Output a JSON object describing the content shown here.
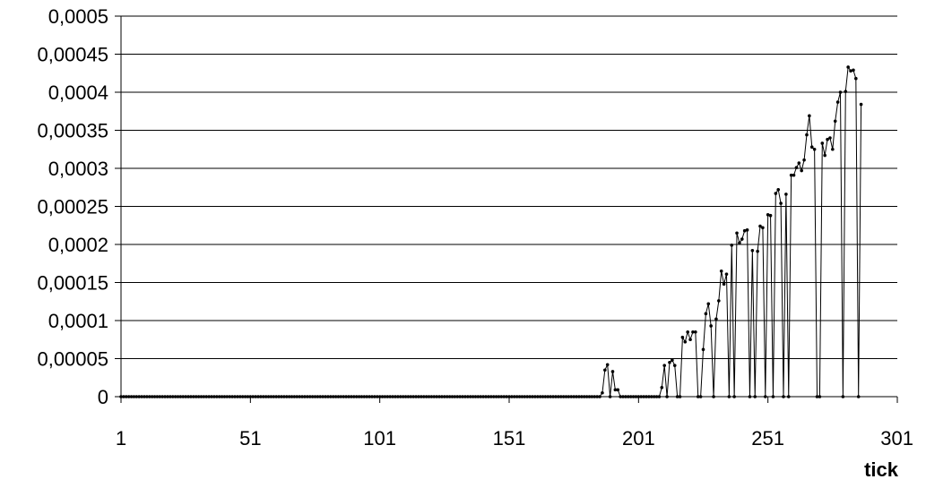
{
  "chart_data": {
    "type": "line",
    "title": "",
    "xlabel": "tick",
    "ylabel": "",
    "xlim": [
      1,
      301
    ],
    "ylim": [
      0,
      0.0005
    ],
    "grid": true,
    "legend": "none",
    "x_ticks": [
      1,
      51,
      101,
      151,
      201,
      251,
      301
    ],
    "x_tick_labels": [
      "1",
      "51",
      "101",
      "151",
      "201",
      "251",
      "301"
    ],
    "y_ticks": [
      0,
      5e-05,
      0.0001,
      0.00015,
      0.0002,
      0.00025,
      0.0003,
      0.00035,
      0.0004,
      0.00045,
      0.0005
    ],
    "y_tick_labels": [
      "0",
      "0,00005",
      "0,0001",
      "0,00015",
      "0,0002",
      "0,00025",
      "0,0003",
      "0,00035",
      "0,0004",
      "0,00045",
      "0,0005"
    ],
    "colors": {
      "line": "#000000",
      "marker": "#000000",
      "grid": "#000000",
      "background": "#ffffff"
    },
    "series": [
      {
        "x_start": 1,
        "values": [
          0,
          0,
          0,
          0,
          0,
          0,
          0,
          0,
          0,
          0,
          0,
          0,
          0,
          0,
          0,
          0,
          0,
          0,
          0,
          0,
          0,
          0,
          0,
          0,
          0,
          0,
          0,
          0,
          0,
          0,
          0,
          0,
          0,
          0,
          0,
          0,
          0,
          0,
          0,
          0,
          0,
          0,
          0,
          0,
          0,
          0,
          0,
          0,
          0,
          0,
          0,
          0,
          0,
          0,
          0,
          0,
          0,
          0,
          0,
          0,
          0,
          0,
          0,
          0,
          0,
          0,
          0,
          0,
          0,
          0,
          0,
          0,
          0,
          0,
          0,
          0,
          0,
          0,
          0,
          0,
          0,
          0,
          0,
          0,
          0,
          0,
          0,
          0,
          0,
          0,
          0,
          0,
          0,
          0,
          0,
          0,
          0,
          0,
          0,
          0,
          0,
          0,
          0,
          0,
          0,
          0,
          0,
          0,
          0,
          0,
          0,
          0,
          0,
          0,
          0,
          0,
          0,
          0,
          0,
          0,
          0,
          0,
          0,
          0,
          0,
          0,
          0,
          0,
          0,
          0,
          0,
          0,
          0,
          0,
          0,
          0,
          0,
          0,
          0,
          0,
          0,
          0,
          0,
          0,
          0,
          0,
          0,
          0,
          0,
          0,
          0,
          0,
          0,
          0,
          0,
          0,
          0,
          0,
          0,
          0,
          0,
          0,
          0,
          0,
          0,
          0,
          0,
          0,
          0,
          0,
          0,
          0,
          0,
          0,
          0,
          0,
          0,
          0,
          0,
          0,
          0,
          0,
          0,
          0,
          0,
          0,
          5e-06,
          3.5e-05,
          4.2e-05,
          0,
          3.3e-05,
          9e-06,
          9e-06,
          0,
          0,
          0,
          0,
          0,
          0,
          0,
          0,
          0,
          0,
          0,
          0,
          0,
          0,
          0,
          0,
          1.2e-05,
          4.1e-05,
          0,
          4.5e-05,
          4.8e-05,
          4.1e-05,
          0,
          0,
          7.8e-05,
          7.2e-05,
          8.5e-05,
          7.5e-05,
          8.5e-05,
          8.5e-05,
          0,
          0,
          6.2e-05,
          0.000109,
          0.000122,
          9.3e-05,
          0,
          0.000102,
          0.000126,
          0.000165,
          0.000148,
          0.000161,
          0,
          0.000199,
          0,
          0.000215,
          0.000202,
          0.000207,
          0.000218,
          0.000219,
          0,
          0.000192,
          0,
          0.000191,
          0.000224,
          0.000222,
          0,
          0.000239,
          0.000238,
          0,
          0.000267,
          0.000272,
          0.000254,
          0,
          0.000266,
          0,
          0.000291,
          0.000291,
          0.000301,
          0.000307,
          0.000297,
          0.000311,
          0.000344,
          0.000369,
          0.000328,
          0.000325,
          0,
          0,
          0.000333,
          0.000317,
          0.000338,
          0.00034,
          0.000325,
          0.000362,
          0.000387,
          0.0004,
          0,
          0.000401,
          0.000433,
          0.000428,
          0.000429,
          0.000418,
          0,
          0.000384
        ]
      }
    ]
  }
}
